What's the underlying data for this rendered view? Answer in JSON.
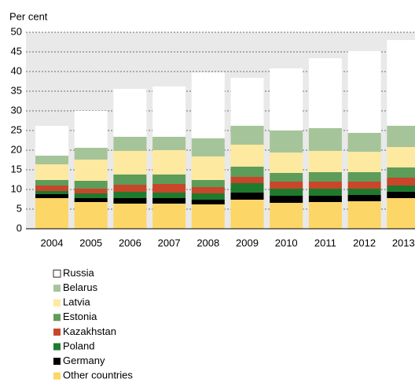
{
  "chart_data": {
    "type": "stacked_bar",
    "y_label": "Per cent",
    "categories": [
      "2004",
      "2005",
      "2006",
      "2007",
      "2008",
      "2009",
      "2010",
      "2011",
      "2012",
      "2013"
    ],
    "series": [
      {
        "name": "Other countries",
        "color": "#fcd667",
        "values": [
          7.8,
          6.8,
          6.4,
          6.4,
          6.2,
          7.4,
          6.6,
          6.8,
          7.0,
          7.8
        ]
      },
      {
        "name": "Germany",
        "color": "#000000",
        "values": [
          1.0,
          1.0,
          1.4,
          1.4,
          1.2,
          1.8,
          1.8,
          1.6,
          1.6,
          1.6
        ]
      },
      {
        "name": "Poland",
        "color": "#1f7a2e",
        "values": [
          0.8,
          1.2,
          1.6,
          1.4,
          1.6,
          2.4,
          1.8,
          1.8,
          1.6,
          1.6
        ]
      },
      {
        "name": "Kazakhstan",
        "color": "#c8462a",
        "values": [
          1.4,
          1.2,
          1.8,
          2.2,
          1.6,
          1.6,
          1.8,
          1.8,
          1.8,
          2.0
        ]
      },
      {
        "name": "Estonia",
        "color": "#5e9c5a",
        "values": [
          1.4,
          2.0,
          2.6,
          2.4,
          1.8,
          2.6,
          2.2,
          2.4,
          2.4,
          2.6
        ]
      },
      {
        "name": "Latvia",
        "color": "#fde9a0",
        "values": [
          4.0,
          5.4,
          6.0,
          6.2,
          6.0,
          5.6,
          5.2,
          5.4,
          5.2,
          5.2
        ]
      },
      {
        "name": "Belarus",
        "color": "#a6c49a",
        "values": [
          2.2,
          3.0,
          3.6,
          3.4,
          4.6,
          4.8,
          5.6,
          5.8,
          4.8,
          5.4
        ]
      },
      {
        "name": "Russia",
        "color": "#ffffff",
        "values": [
          7.6,
          9.4,
          12.2,
          12.8,
          16.8,
          12.2,
          15.8,
          17.8,
          20.8,
          21.8
        ]
      }
    ],
    "ylim": [
      0,
      50
    ],
    "yticks": [
      0,
      5,
      10,
      15,
      20,
      25,
      30,
      35,
      40,
      45,
      50
    ],
    "grid": true
  }
}
